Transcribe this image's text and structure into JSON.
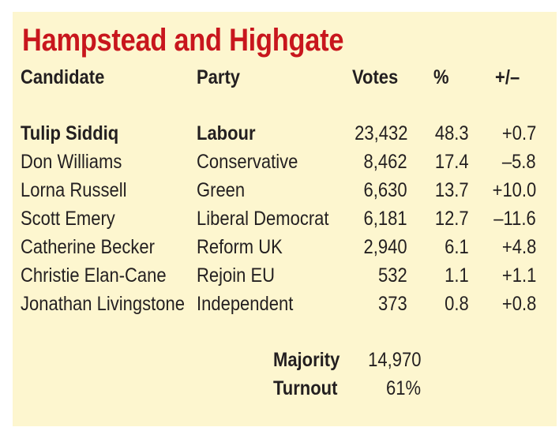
{
  "title": "Hampstead and Highgate",
  "headers": {
    "candidate": "Candidate",
    "party": "Party",
    "votes": "Votes",
    "pct": "%",
    "change": "+/–"
  },
  "rows": [
    {
      "candidate": "Tulip Siddiq",
      "party": "Labour",
      "votes": "23,432",
      "pct": "48.3",
      "change": "+0.7",
      "winner": true
    },
    {
      "candidate": "Don Williams",
      "party": "Conservative",
      "votes": "8,462",
      "pct": "17.4",
      "change": "–5.8"
    },
    {
      "candidate": "Lorna Russell",
      "party": "Green",
      "votes": "6,630",
      "pct": "13.7",
      "change": "+10.0"
    },
    {
      "candidate": "Scott Emery",
      "party": "Liberal Democrat",
      "votes": "6,181",
      "pct": "12.7",
      "change": "–11.6"
    },
    {
      "candidate": "Catherine Becker",
      "party": "Reform UK",
      "votes": "2,940",
      "pct": "6.1",
      "change": "+4.8"
    },
    {
      "candidate": "Christie Elan-Cane",
      "party": "Rejoin EU",
      "votes": "532",
      "pct": "1.1",
      "change": "+1.1"
    },
    {
      "candidate": "Jonathan Livingstone",
      "party": "Independent",
      "votes": "373",
      "pct": "0.8",
      "change": "+0.8"
    }
  ],
  "footer": {
    "majority_label": "Majority",
    "majority_value": "14,970",
    "turnout_label": "Turnout",
    "turnout_value": "61%"
  },
  "colors": {
    "background": "#fdf6cf",
    "title": "#c8161d",
    "text": "#231f20"
  }
}
